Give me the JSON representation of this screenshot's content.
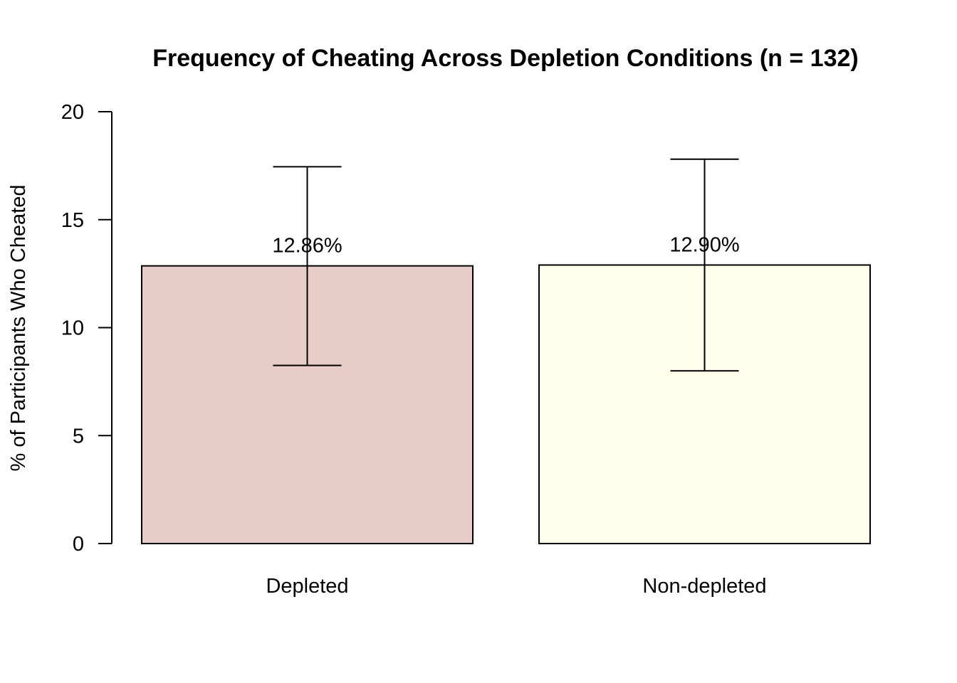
{
  "chart_data": {
    "type": "bar",
    "title": "Frequency of Cheating Across Depletion Conditions (n = 132)",
    "xlabel": "",
    "ylabel": "% of Participants Who Cheated",
    "categories": [
      "Depleted",
      "Non-depleted"
    ],
    "values": [
      12.86,
      12.9
    ],
    "data_labels": [
      "12.86%",
      "12.90%"
    ],
    "error_bars": [
      {
        "lower": 8.25,
        "upper": 17.45
      },
      {
        "lower": 8.0,
        "upper": 17.8
      }
    ],
    "ylim": [
      0,
      20
    ],
    "yticks": [
      0,
      5,
      10,
      15,
      20
    ],
    "colors": [
      "#E8CCC8",
      "#FFFFEC"
    ],
    "grid": false,
    "legend": "none"
  }
}
